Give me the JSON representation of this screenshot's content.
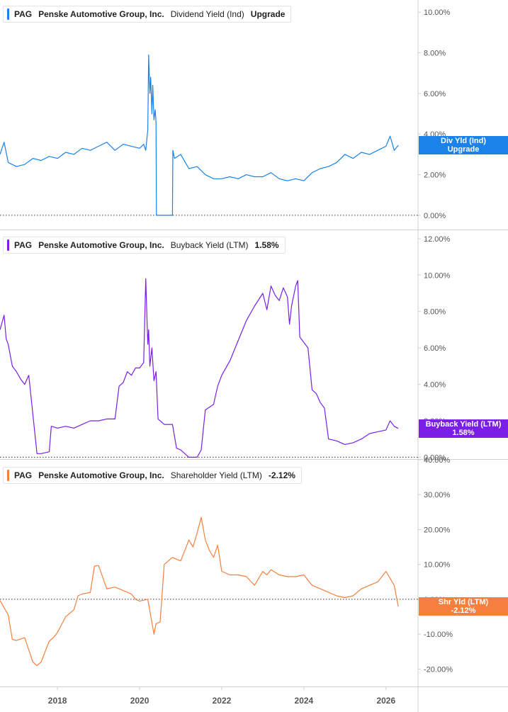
{
  "colors": {
    "dividend": "#1a82e8",
    "buyback": "#7b1ee6",
    "shareholder": "#f5803e",
    "grid": "#d0d0d0",
    "axis_text": "#555555",
    "zero_line": "#333333"
  },
  "chart_data": [
    {
      "type": "line",
      "legend": {
        "ticker": "PAG",
        "company": "Penske Automotive Group, Inc.",
        "metric": "Dividend Yield (Ind)",
        "value": "Upgrade"
      },
      "tag": {
        "line1": "Div Yld (Ind)",
        "line2": "Upgrade"
      },
      "y_ticks": [
        "0.00%",
        "2.00%",
        "4.00%",
        "6.00%",
        "8.00%",
        "10.00%"
      ],
      "y_tick_values": [
        0,
        2,
        4,
        6,
        8,
        10
      ],
      "ylim": [
        -0.7,
        10.6
      ],
      "tag_value": 3.45,
      "series": [
        {
          "x": [
            2016.6,
            2016.7,
            2016.8,
            2017.0,
            2017.2,
            2017.4,
            2017.6,
            2017.8,
            2018.0,
            2018.2,
            2018.4,
            2018.6,
            2018.8,
            2019.0,
            2019.2,
            2019.4,
            2019.6,
            2019.8,
            2020.0,
            2020.1,
            2020.15,
            2020.2,
            2020.22,
            2020.25,
            2020.27,
            2020.3,
            2020.32,
            2020.35,
            2020.38,
            2020.4,
            2020.41,
            2020.8,
            2020.81,
            2020.85,
            2021.0,
            2021.2,
            2021.4,
            2021.6,
            2021.8,
            2022.0,
            2022.2,
            2022.4,
            2022.6,
            2022.8,
            2023.0,
            2023.2,
            2023.4,
            2023.6,
            2023.8,
            2024.0,
            2024.2,
            2024.4,
            2024.6,
            2024.8,
            2025.0,
            2025.2,
            2025.4,
            2025.6,
            2025.8,
            2026.0,
            2026.1,
            2026.2,
            2026.3
          ],
          "y": [
            3.0,
            3.6,
            2.6,
            2.4,
            2.5,
            2.8,
            2.7,
            2.9,
            2.8,
            3.1,
            3.0,
            3.3,
            3.2,
            3.4,
            3.6,
            3.2,
            3.5,
            3.4,
            3.3,
            3.5,
            3.2,
            4.2,
            7.9,
            6.0,
            6.8,
            5.0,
            6.4,
            4.7,
            5.2,
            4.6,
            0.0,
            0.0,
            3.2,
            2.8,
            3.0,
            2.3,
            2.4,
            2.0,
            1.8,
            1.8,
            1.9,
            1.8,
            2.0,
            1.9,
            1.9,
            2.1,
            1.8,
            1.7,
            1.8,
            1.7,
            2.1,
            2.3,
            2.4,
            2.6,
            3.0,
            2.8,
            3.1,
            3.0,
            3.2,
            3.4,
            3.9,
            3.2,
            3.45
          ]
        }
      ]
    },
    {
      "type": "line",
      "legend": {
        "ticker": "PAG",
        "company": "Penske Automotive Group, Inc.",
        "metric": "Buyback Yield (LTM)",
        "value": "1.58%"
      },
      "tag": {
        "line1": "Buyback Yield (LTM)",
        "line2": "1.58%"
      },
      "y_ticks": [
        "0.00%",
        "2.00%",
        "4.00%",
        "6.00%",
        "8.00%",
        "10.00%",
        "12.00%"
      ],
      "y_tick_values": [
        0,
        2,
        4,
        6,
        8,
        10,
        12
      ],
      "ylim": [
        -0.1,
        12.5
      ],
      "tag_value": 1.58,
      "series": [
        {
          "x": [
            2016.6,
            2016.7,
            2016.75,
            2016.8,
            2016.9,
            2017.0,
            2017.1,
            2017.2,
            2017.3,
            2017.5,
            2017.6,
            2017.8,
            2017.85,
            2018.0,
            2018.2,
            2018.4,
            2018.6,
            2018.8,
            2019.0,
            2019.2,
            2019.4,
            2019.5,
            2019.6,
            2019.7,
            2019.8,
            2019.9,
            2020.0,
            2020.1,
            2020.15,
            2020.2,
            2020.22,
            2020.25,
            2020.3,
            2020.35,
            2020.4,
            2020.45,
            2020.6,
            2020.8,
            2020.9,
            2021.0,
            2021.2,
            2021.4,
            2021.5,
            2021.6,
            2021.8,
            2021.9,
            2022.0,
            2022.2,
            2022.4,
            2022.6,
            2022.8,
            2023.0,
            2023.1,
            2023.2,
            2023.3,
            2023.4,
            2023.5,
            2023.6,
            2023.65,
            2023.7,
            2023.8,
            2023.85,
            2023.9,
            2024.0,
            2024.1,
            2024.2,
            2024.3,
            2024.4,
            2024.5,
            2024.6,
            2024.8,
            2025.0,
            2025.2,
            2025.4,
            2025.6,
            2025.8,
            2026.0,
            2026.1,
            2026.2,
            2026.3
          ],
          "y": [
            7.0,
            7.8,
            6.5,
            6.2,
            5.0,
            4.7,
            4.3,
            4.0,
            4.5,
            0.2,
            0.2,
            0.3,
            1.7,
            1.6,
            1.7,
            1.6,
            1.8,
            2.0,
            2.0,
            2.1,
            2.1,
            3.9,
            4.1,
            4.7,
            4.5,
            4.9,
            4.9,
            5.2,
            9.8,
            6.2,
            7.0,
            5.0,
            6.0,
            4.2,
            4.7,
            2.1,
            1.8,
            1.8,
            0.5,
            0.4,
            0.0,
            0.0,
            0.4,
            2.6,
            2.9,
            3.9,
            4.5,
            5.3,
            6.4,
            7.5,
            8.3,
            9.0,
            8.1,
            9.4,
            8.9,
            8.6,
            9.3,
            8.8,
            7.3,
            8.3,
            9.4,
            9.7,
            6.6,
            6.3,
            6.0,
            3.7,
            3.5,
            3.0,
            2.7,
            1.0,
            0.9,
            0.7,
            0.8,
            1.0,
            1.3,
            1.4,
            1.5,
            2.0,
            1.7,
            1.58
          ]
        }
      ]
    },
    {
      "type": "line",
      "legend": {
        "ticker": "PAG",
        "company": "Penske Automotive Group, Inc.",
        "metric": "Shareholder Yield (LTM)",
        "value": "-2.12%"
      },
      "tag": {
        "line1": "Shr Yld (LTM)",
        "line2": "-2.12%"
      },
      "y_ticks": [
        "-20.00%",
        "-10.00%",
        "0.00%",
        "10.00%",
        "20.00%",
        "30.00%",
        "40.00%"
      ],
      "y_tick_values": [
        -20,
        -10,
        0,
        10,
        20,
        30,
        40
      ],
      "ylim": [
        -25,
        40.2
      ],
      "tag_value": -2.12,
      "series": [
        {
          "x": [
            2016.6,
            2016.8,
            2016.9,
            2017.0,
            2017.2,
            2017.4,
            2017.5,
            2017.6,
            2017.8,
            2017.9,
            2018.0,
            2018.2,
            2018.4,
            2018.5,
            2018.6,
            2018.8,
            2018.9,
            2019.0,
            2019.2,
            2019.4,
            2019.6,
            2019.8,
            2019.9,
            2020.0,
            2020.2,
            2020.35,
            2020.4,
            2020.5,
            2020.6,
            2020.8,
            2021.0,
            2021.2,
            2021.3,
            2021.4,
            2021.5,
            2021.6,
            2021.7,
            2021.8,
            2021.9,
            2022.0,
            2022.2,
            2022.4,
            2022.6,
            2022.8,
            2023.0,
            2023.1,
            2023.2,
            2023.4,
            2023.6,
            2023.8,
            2024.0,
            2024.2,
            2024.4,
            2024.6,
            2024.8,
            2025.0,
            2025.2,
            2025.4,
            2025.6,
            2025.8,
            2026.0,
            2026.1,
            2026.2,
            2026.3
          ],
          "y": [
            -0.3,
            -4.5,
            -11.5,
            -11.8,
            -11.0,
            -18.0,
            -19.0,
            -18.0,
            -12.0,
            -11.0,
            -9.5,
            -5.0,
            -3.0,
            1.0,
            1.5,
            2.0,
            9.5,
            9.7,
            3.0,
            3.5,
            2.5,
            1.5,
            0.0,
            -0.5,
            0.0,
            -10.0,
            -7.0,
            -6.5,
            10.0,
            12.0,
            11.0,
            17.0,
            15.0,
            19.0,
            23.5,
            17.0,
            14.0,
            12.0,
            15.5,
            8.0,
            7.0,
            7.0,
            6.5,
            4.0,
            8.0,
            7.0,
            8.5,
            7.0,
            6.5,
            6.5,
            7.0,
            4.0,
            3.0,
            2.0,
            1.0,
            0.5,
            1.0,
            3.0,
            4.0,
            5.0,
            8.0,
            6.0,
            4.0,
            -2.12
          ]
        }
      ]
    }
  ],
  "x_axis": {
    "ticks": [
      "2018",
      "2020",
      "2022",
      "2024",
      "2026"
    ],
    "tick_values": [
      2018,
      2020,
      2022,
      2024,
      2026
    ],
    "xlim": [
      2016.6,
      2026.78
    ]
  }
}
